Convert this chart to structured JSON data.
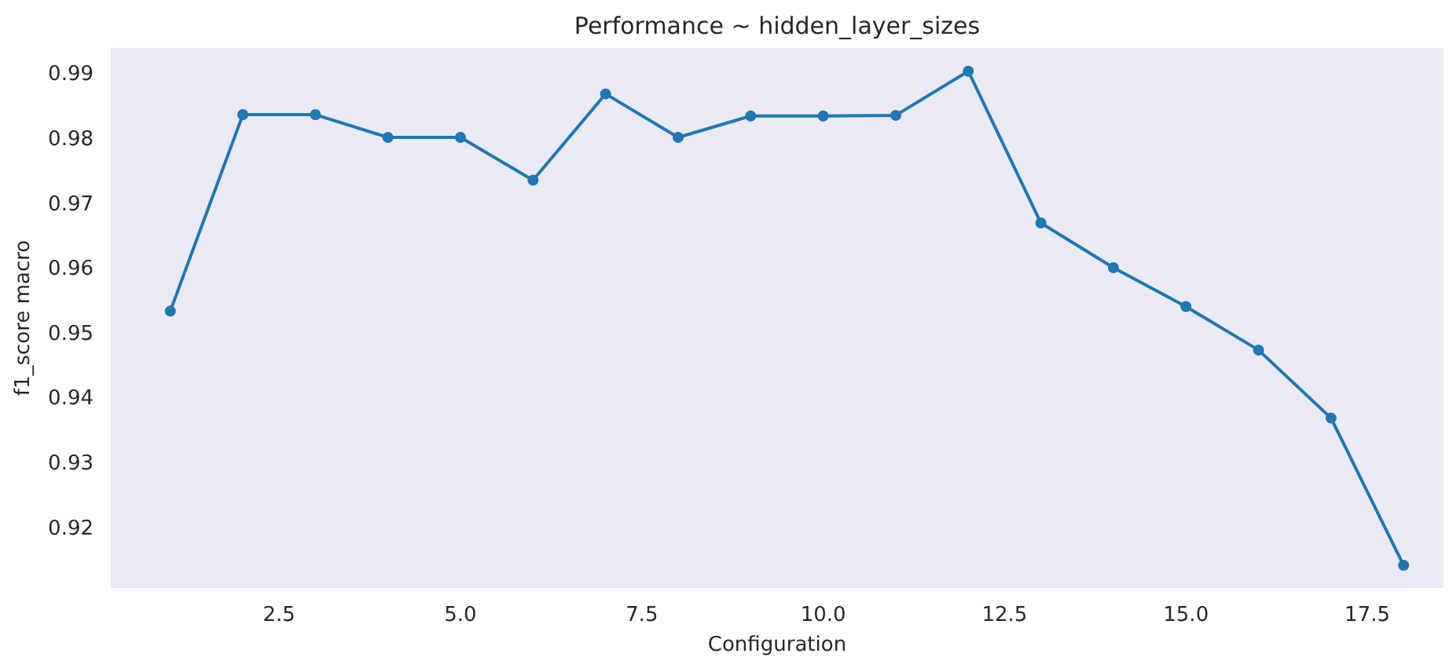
{
  "chart_data": {
    "type": "line",
    "title": "Performance ~ hidden_layer_sizes",
    "xlabel": "Configuration",
    "ylabel": "f1_score macro",
    "x": [
      1,
      2,
      3,
      4,
      5,
      6,
      7,
      8,
      9,
      10,
      11,
      12,
      13,
      14,
      15,
      16,
      17,
      18
    ],
    "series": [
      {
        "color": "#1f77b4",
        "values": [
          0.9532,
          0.9835,
          0.9835,
          0.98,
          0.98,
          0.9734,
          0.9867,
          0.98,
          0.9833,
          0.9833,
          0.9834,
          0.9902,
          0.9668,
          0.9599,
          0.9539,
          0.9472,
          0.9367,
          0.914
        ]
      }
    ],
    "xlim": [
      0.18,
      18.55
    ],
    "ylim": [
      0.9105,
      0.9938
    ],
    "xticks": [
      {
        "value": 2.5,
        "label": "2.5"
      },
      {
        "value": 5,
        "label": "5.0"
      },
      {
        "value": 7.5,
        "label": "7.5"
      },
      {
        "value": 10,
        "label": "10.0"
      },
      {
        "value": 12.5,
        "label": "12.5"
      },
      {
        "value": 15,
        "label": "15.0"
      },
      {
        "value": 17.5,
        "label": "17.5"
      }
    ],
    "yticks": [
      0.92,
      0.93,
      0.94,
      0.95,
      0.96,
      0.97,
      0.98,
      0.99
    ],
    "grid": false,
    "marker": "circle",
    "line_style": "solid"
  }
}
